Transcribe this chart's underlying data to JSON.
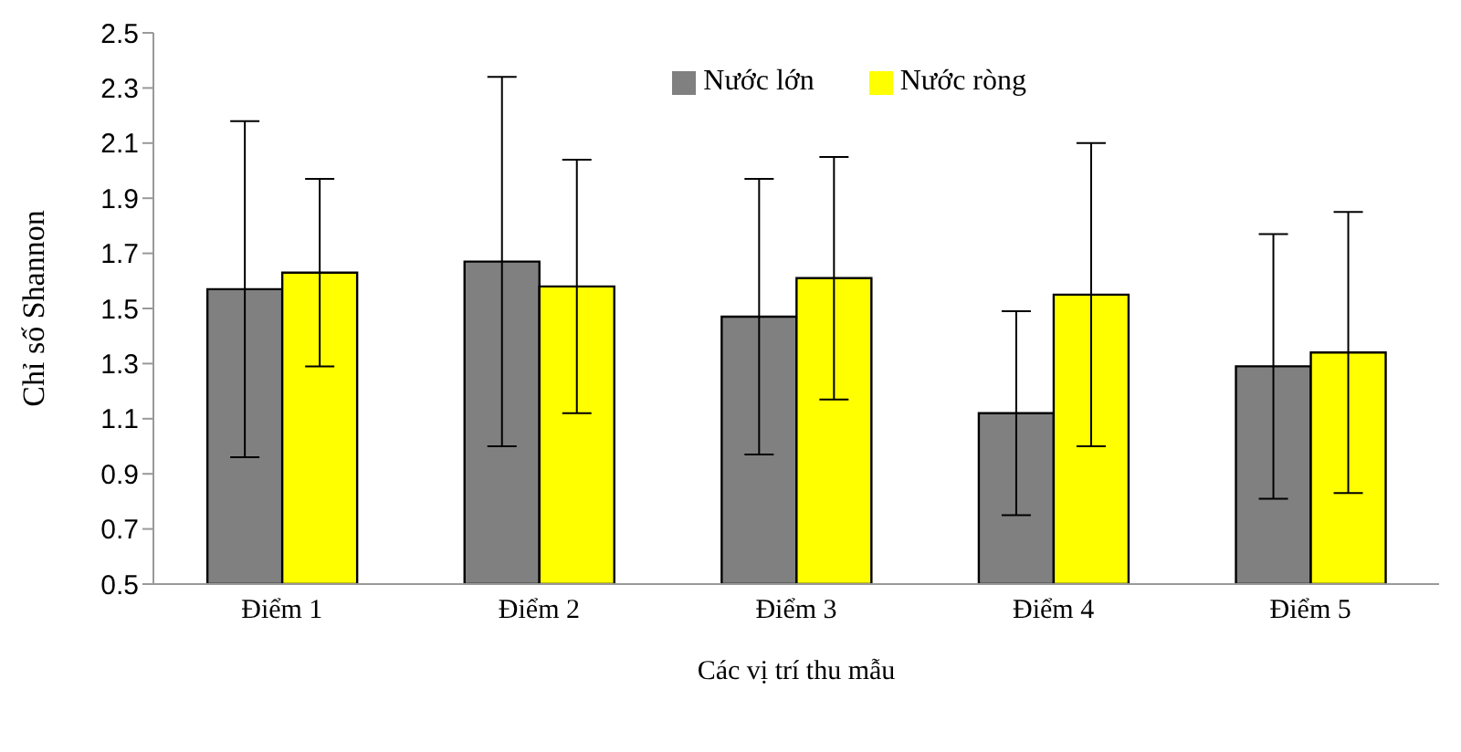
{
  "chart_data": {
    "type": "bar",
    "xlabel": "Các vị trí thu mẫu",
    "ylabel": "Chỉ số Shannon",
    "categories": [
      "Điểm 1",
      "Điểm 2",
      "Điểm 3",
      "Điểm 4",
      "Điểm 5"
    ],
    "series": [
      {
        "name": "Nước lớn",
        "color": "#808080",
        "values": [
          1.57,
          1.67,
          1.47,
          1.12,
          1.29
        ],
        "errors": [
          0.61,
          0.67,
          0.5,
          0.37,
          0.48
        ]
      },
      {
        "name": "Nước ròng",
        "color": "#ffff00",
        "values": [
          1.63,
          1.58,
          1.61,
          1.55,
          1.34
        ],
        "errors": [
          0.34,
          0.46,
          0.44,
          0.55,
          0.51
        ]
      }
    ],
    "ylim": [
      0.5,
      2.5
    ],
    "yticks": [
      0.5,
      0.7,
      0.9,
      1.1,
      1.3,
      1.5,
      1.7,
      1.9,
      2.1,
      2.3,
      2.5
    ],
    "grid": false,
    "legend": "top right"
  }
}
